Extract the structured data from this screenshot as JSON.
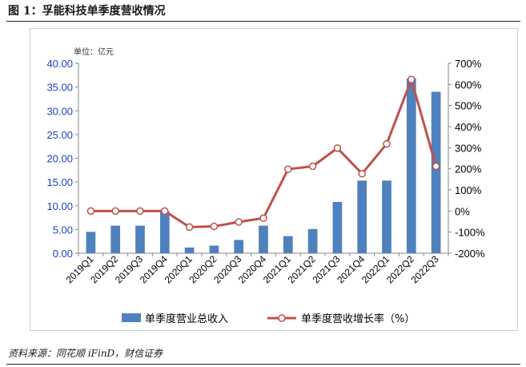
{
  "figure": {
    "title": "图 1：孚能科技单季度营收情况",
    "source": "资料来源：同花顺 iFinD，财信证券"
  },
  "chart_data": {
    "type": "bar",
    "unit_label": "单位：亿元",
    "categories": [
      "2019Q1",
      "2019Q2",
      "2019Q3",
      "2019Q4",
      "2020Q1",
      "2020Q2",
      "2020Q3",
      "2020Q4",
      "2021Q1",
      "2021Q2",
      "2021Q3",
      "2021Q4",
      "2022Q1",
      "2022Q2",
      "2022Q3"
    ],
    "series": [
      {
        "name": "单季度营业总收入",
        "type": "bar",
        "axis": "left",
        "color": "#4f81bd",
        "values": [
          4.5,
          5.8,
          5.8,
          8.8,
          1.2,
          1.6,
          2.8,
          5.8,
          3.6,
          5.1,
          10.8,
          15.3,
          15.3,
          36.8,
          34.0
        ]
      },
      {
        "name": "单季度营收增长率（%）",
        "type": "line",
        "axis": "right",
        "color": "#c0504d",
        "values": [
          0,
          0,
          0,
          0,
          -76,
          -73,
          -52,
          -34,
          198,
          212,
          298,
          177,
          318,
          623,
          212
        ]
      }
    ],
    "y_left": {
      "min": 0,
      "max": 40,
      "step": 5,
      "ticks": [
        "0.00",
        "5.00",
        "10.00",
        "15.00",
        "20.00",
        "25.00",
        "30.00",
        "35.00",
        "40.00"
      ]
    },
    "y_right": {
      "min": -200,
      "max": 700,
      "step": 100,
      "ticks": [
        "-200%",
        "-100%",
        "0%",
        "100%",
        "200%",
        "300%",
        "400%",
        "500%",
        "600%",
        "700%"
      ]
    },
    "grid": false,
    "legend_position": "bottom"
  }
}
